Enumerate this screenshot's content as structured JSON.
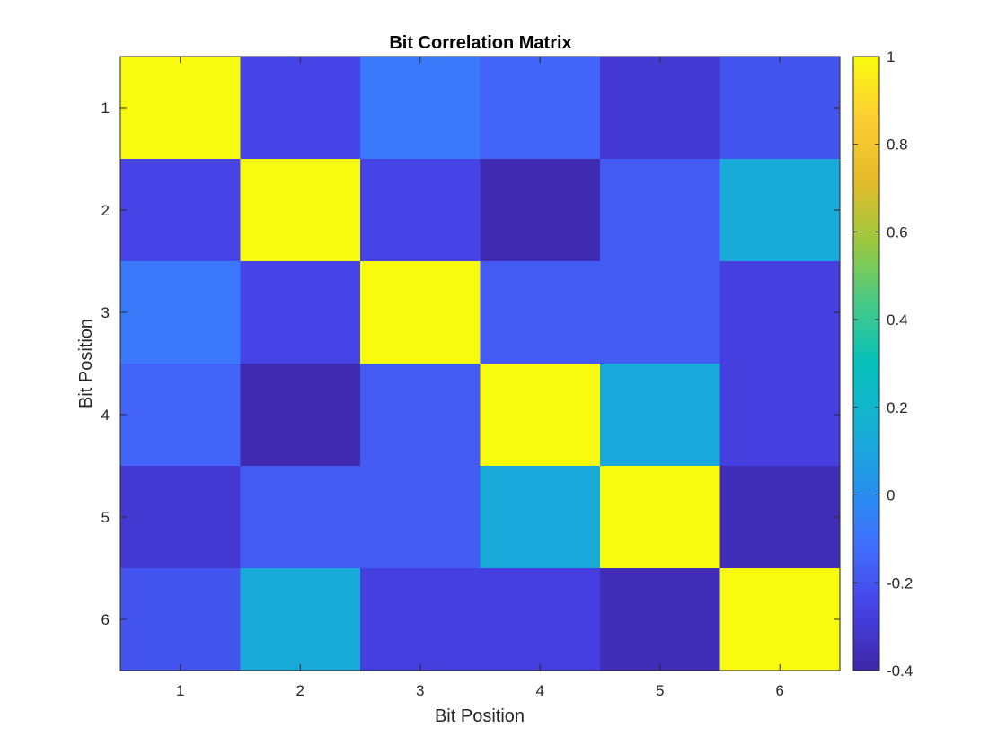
{
  "chart_data": {
    "type": "heatmap",
    "title": "Bit Correlation Matrix",
    "xlabel": "Bit Position",
    "ylabel": "Bit Position",
    "x_categories": [
      "1",
      "2",
      "3",
      "4",
      "5",
      "6"
    ],
    "y_categories": [
      "1",
      "2",
      "3",
      "4",
      "5",
      "6"
    ],
    "values": [
      [
        1.0,
        -0.25,
        -0.08,
        -0.15,
        -0.3,
        -0.2
      ],
      [
        -0.25,
        1.0,
        -0.25,
        -0.38,
        -0.18,
        0.13
      ],
      [
        -0.08,
        -0.25,
        1.0,
        -0.18,
        -0.18,
        -0.27
      ],
      [
        -0.15,
        -0.38,
        -0.18,
        1.0,
        0.12,
        -0.27
      ],
      [
        -0.3,
        -0.18,
        -0.18,
        0.12,
        1.0,
        -0.36
      ],
      [
        -0.2,
        0.13,
        -0.27,
        -0.27,
        -0.36,
        1.0
      ]
    ],
    "colormap": "parula",
    "color_limits": [
      -0.4,
      1
    ],
    "colorbar": {
      "ticks": [
        1,
        0.8,
        0.6,
        0.4,
        0.2,
        0,
        -0.2,
        -0.4
      ],
      "tick_labels": [
        "1",
        "0.8",
        "0.6",
        "0.4",
        "0.2",
        "0",
        "-0.2",
        "-0.4"
      ],
      "placement": "right"
    },
    "grid": false
  }
}
